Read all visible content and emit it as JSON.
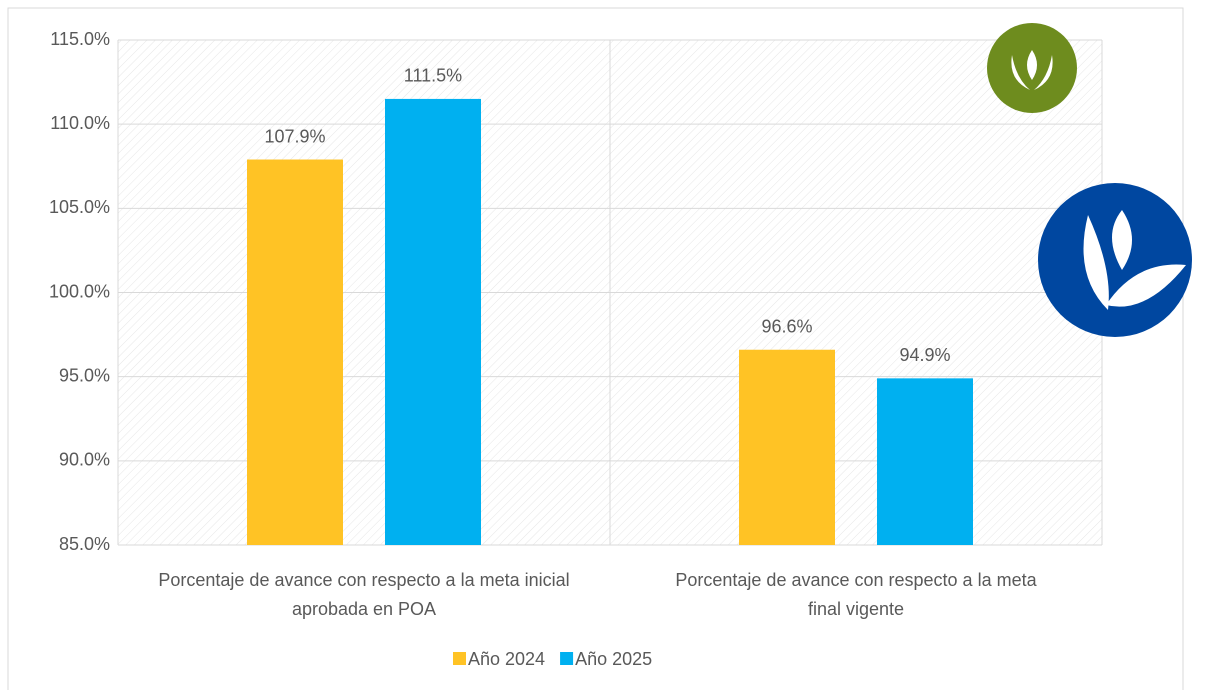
{
  "chart_data": {
    "type": "bar",
    "categories": [
      "Porcentaje de avance con respecto a la meta inicial aprobada en POA",
      "Porcentaje de avance con respecto a la meta final vigente"
    ],
    "series": [
      {
        "name": "Año 2024",
        "color": "#FFC325",
        "values": [
          107.9,
          96.6
        ],
        "value_labels": [
          "107.9%",
          "96.6%"
        ]
      },
      {
        "name": "Año 2025",
        "color": "#00B0F0",
        "values": [
          111.5,
          94.9
        ],
        "value_labels": [
          "111.5%",
          "94.9%"
        ]
      }
    ],
    "ylim": [
      85,
      115
    ],
    "yticks": [
      {
        "value": 85,
        "label": "85.0%"
      },
      {
        "value": 90,
        "label": "90.0%"
      },
      {
        "value": 95,
        "label": "95.0%"
      },
      {
        "value": 100,
        "label": "100.0%"
      },
      {
        "value": 105,
        "label": "105.0%"
      },
      {
        "value": 110,
        "label": "110.0%"
      },
      {
        "value": 115,
        "label": "115.0%"
      }
    ],
    "grid": true,
    "legend": "bottom"
  }
}
